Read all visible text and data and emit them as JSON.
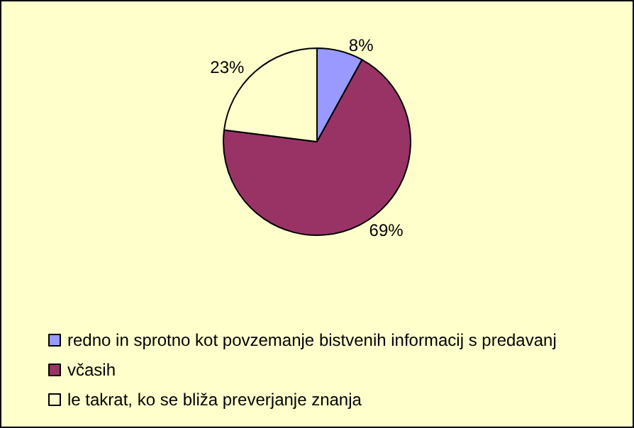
{
  "chart_data": {
    "type": "pie",
    "categories": [
      "redno in sprotno kot povzemanje bistvenih informacij s predavanj",
      "včasih",
      "le takrat, ko se bliža preverjanje znanja"
    ],
    "values": [
      8,
      69,
      23
    ],
    "colors": [
      "#9999ff",
      "#993366",
      "#ffffcc"
    ],
    "value_labels": [
      "8%",
      "69%",
      "23%"
    ],
    "legend": "bottom"
  }
}
